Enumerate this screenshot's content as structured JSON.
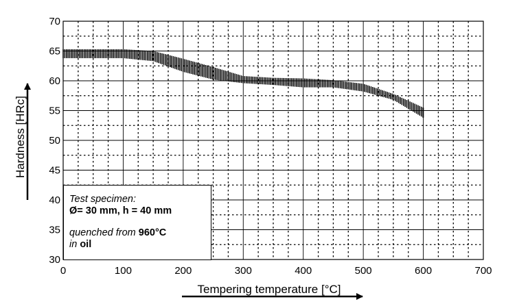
{
  "chart_data": {
    "type": "area",
    "xlabel": "Tempering temperature [°C]",
    "ylabel": "Hardness [HRc]",
    "xlim": [
      0,
      700
    ],
    "ylim": [
      30,
      70
    ],
    "x_ticks": [
      "0",
      "100",
      "200",
      "300",
      "400",
      "500",
      "600",
      "700"
    ],
    "y_ticks": [
      "30",
      "35",
      "40",
      "45",
      "50",
      "55",
      "60",
      "65",
      "70"
    ],
    "grid": true,
    "series": [
      {
        "x": [
          0,
          50,
          100,
          150,
          200,
          250,
          300,
          350,
          400,
          450,
          500,
          550,
          600
        ],
        "lower": [
          63.8,
          63.8,
          63.8,
          63.3,
          61.5,
          60.2,
          59.6,
          59.3,
          58.9,
          58.9,
          58.2,
          56.8,
          53.8
        ],
        "upper": [
          65.3,
          65.3,
          65.3,
          65.0,
          63.7,
          62.3,
          60.8,
          60.5,
          60.4,
          60.1,
          59.5,
          57.8,
          55.5
        ]
      }
    ]
  },
  "note": {
    "line1": "Test specimen:",
    "dim_symbol": "Ø",
    "dims": "= 30 mm, h = 40 mm",
    "quenched_prefix": "quenched from ",
    "quenched_temp": "960°C",
    "in_prefix": "in ",
    "medium": "oil"
  }
}
